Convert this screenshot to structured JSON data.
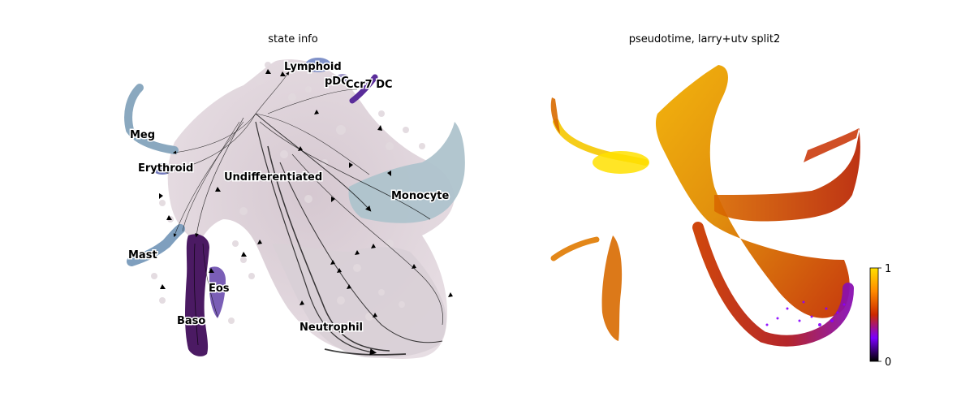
{
  "chart_data": [
    {
      "type": "scatter",
      "title": "state info",
      "annotations": [
        {
          "label": "Lymphoid",
          "color": "#6a7fc0"
        },
        {
          "label": "pDC",
          "color": "#8f86c0"
        },
        {
          "label": "Ccr7 DC",
          "color": "#5a2d9a"
        },
        {
          "label": "Meg",
          "color": "#8aa8bf"
        },
        {
          "label": "Erythroid",
          "color": "#5b63b0"
        },
        {
          "label": "Undifferentiated",
          "color": "#dccfd8"
        },
        {
          "label": "Monocyte",
          "color": "#aec3cc"
        },
        {
          "label": "Mast",
          "color": "#7f9fbe"
        },
        {
          "label": "Eos",
          "color": "#6b4cae"
        },
        {
          "label": "Baso",
          "color": "#4b1a63"
        },
        {
          "label": "Neutrophil",
          "color": "#d8cfd6"
        }
      ],
      "overlay": "velocity streamlines with arrowheads"
    },
    {
      "type": "scatter",
      "title": "pseudotime, larry+utv split2",
      "colormap": "gnuplot",
      "colorbar": {
        "min": 0,
        "max": 1,
        "tick_labels": [
          "0",
          "1"
        ]
      },
      "colorbar_colors": [
        "#000000",
        "#7a00ff",
        "#cc2a00",
        "#ff8a00",
        "#ffe000"
      ]
    }
  ]
}
